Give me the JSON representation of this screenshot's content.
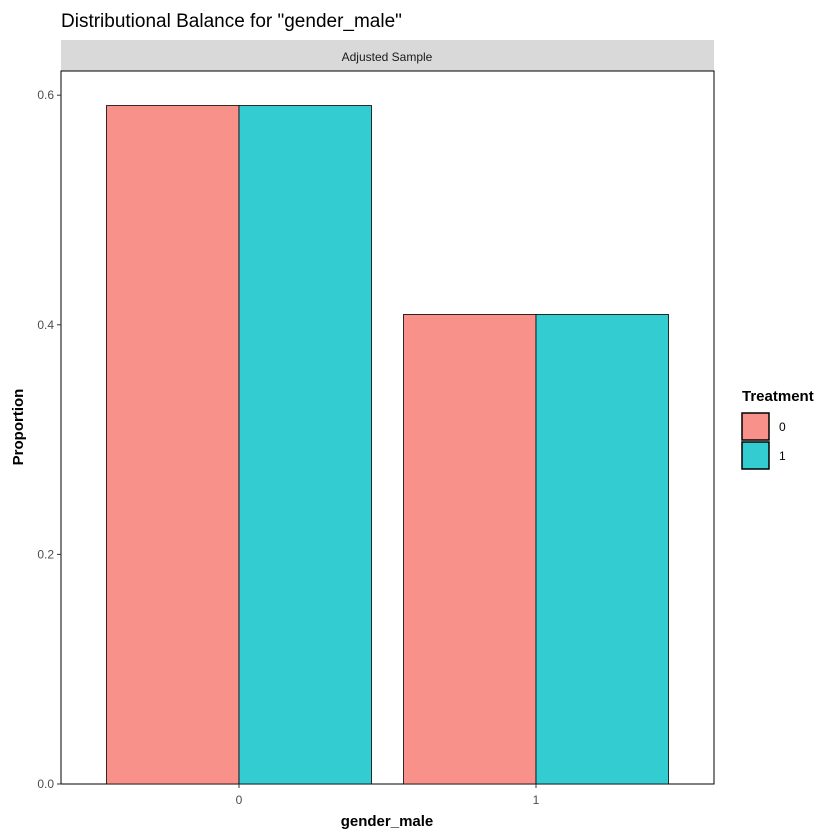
{
  "chart_data": {
    "type": "bar",
    "title": "Distributional Balance for \"gender_male\"",
    "facet_label": "Adjusted Sample",
    "xlabel": "gender_male",
    "ylabel": "Proportion",
    "categories": [
      "0",
      "1"
    ],
    "ylim": [
      0,
      0.62
    ],
    "yticks": [
      0.0,
      0.2,
      0.4,
      0.6
    ],
    "ytick_labels": [
      "0.0",
      "0.2",
      "0.4",
      "0.6"
    ],
    "series": [
      {
        "name": "0",
        "values": [
          0.591,
          0.409
        ],
        "color": "#F8918A"
      },
      {
        "name": "1",
        "values": [
          0.591,
          0.409
        ],
        "color": "#33CCD1"
      }
    ],
    "legend": {
      "title": "Treatment",
      "placement": "right"
    },
    "grid": false
  }
}
